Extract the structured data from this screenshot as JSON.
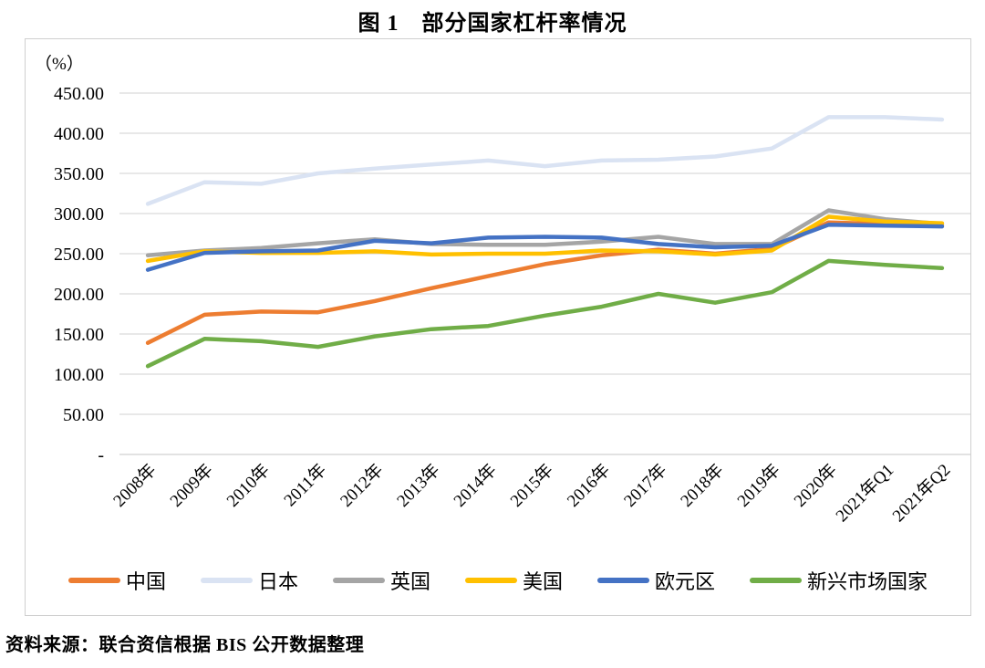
{
  "chart_data": {
    "type": "line",
    "title": "图 1　部分国家杠杆率情况",
    "unit_label": "（%）",
    "source": "资料来源：联合资信根据 BIS 公开数据整理",
    "categories": [
      "2008年",
      "2009年",
      "2010年",
      "2011年",
      "2012年",
      "2013年",
      "2014年",
      "2015年",
      "2016年",
      "2017年",
      "2018年",
      "2019年",
      "2020年",
      "2021年Q1",
      "2021年Q2"
    ],
    "series": [
      {
        "name": "中国",
        "color": "#ED7D31",
        "values": [
          139,
          174,
          178,
          177,
          191,
          207,
          222,
          237,
          248,
          255,
          250,
          256,
          289,
          287,
          285
        ]
      },
      {
        "name": "日本",
        "color": "#DAE3F3",
        "values": [
          312,
          339,
          337,
          350,
          356,
          361,
          366,
          359,
          366,
          367,
          371,
          381,
          420,
          420,
          417
        ]
      },
      {
        "name": "英国",
        "color": "#A5A5A5",
        "values": [
          248,
          254,
          257,
          263,
          268,
          262,
          261,
          261,
          265,
          271,
          262,
          262,
          304,
          293,
          287
        ]
      },
      {
        "name": "美国",
        "color": "#FFC000",
        "values": [
          241,
          253,
          251,
          251,
          253,
          249,
          250,
          250,
          254,
          253,
          249,
          254,
          296,
          290,
          288
        ]
      },
      {
        "name": "欧元区",
        "color": "#4472C4",
        "values": [
          230,
          251,
          253,
          254,
          266,
          263,
          270,
          271,
          270,
          262,
          258,
          260,
          286,
          285,
          284
        ]
      },
      {
        "name": "新兴市场国家",
        "color": "#70AD47",
        "values": [
          110,
          144,
          141,
          134,
          147,
          156,
          160,
          173,
          184,
          200,
          189,
          202,
          241,
          236,
          232
        ]
      }
    ],
    "ylim": [
      0,
      450
    ],
    "ytick_step": 50,
    "ytick_labels": [
      "-",
      "50.00",
      "100.00",
      "150.00",
      "200.00",
      "250.00",
      "300.00",
      "350.00",
      "400.00",
      "450.00"
    ],
    "grid": "horizontal",
    "legend_position": "bottom",
    "gridline_color": "#D9D9D9"
  }
}
